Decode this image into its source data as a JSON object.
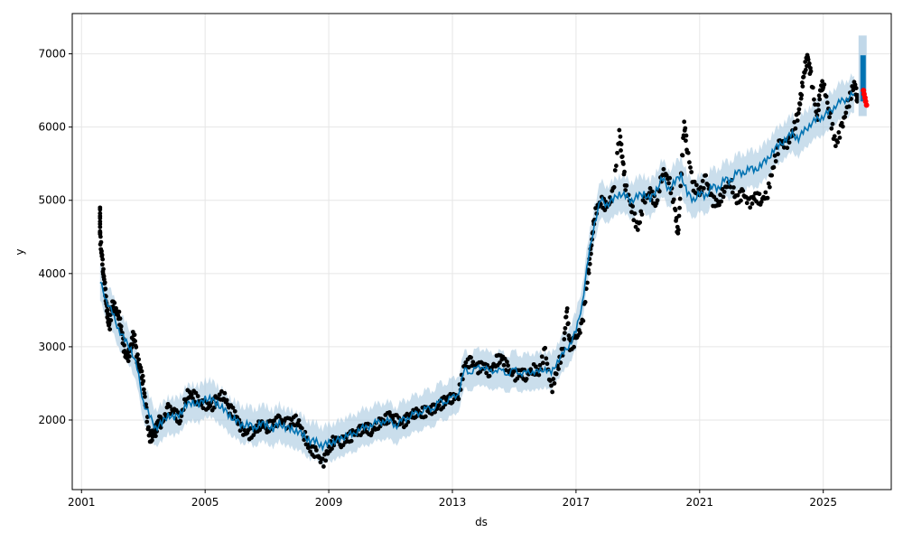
{
  "chart_data": {
    "type": "line",
    "xlabel": "ds",
    "ylabel": "y",
    "xlim": [
      2000.7,
      2027.2
    ],
    "ylim": [
      1050,
      7550
    ],
    "grid": true,
    "x_ticks": [
      2001,
      2005,
      2009,
      2013,
      2017,
      2021,
      2025
    ],
    "y_ticks": [
      2000,
      3000,
      4000,
      5000,
      6000,
      7000
    ],
    "colors": {
      "observed": "#000000",
      "forecast": "#0072B2",
      "uncertainty": "#a6c8e0",
      "test": "#ff0000",
      "grid": "#e6e6e6"
    },
    "series": [
      {
        "role": "forecast",
        "points": [
          [
            2001.6,
            3880
          ],
          [
            2001.8,
            3650
          ],
          [
            2002.0,
            3450
          ],
          [
            2002.2,
            3250
          ],
          [
            2002.4,
            3080
          ],
          [
            2002.6,
            2980
          ],
          [
            2002.8,
            2700
          ],
          [
            2003.0,
            2250
          ],
          [
            2003.2,
            2050
          ],
          [
            2003.4,
            1900
          ],
          [
            2003.6,
            1950
          ],
          [
            2003.8,
            2080
          ],
          [
            2004.0,
            2020
          ],
          [
            2004.2,
            2100
          ],
          [
            2004.4,
            2200
          ],
          [
            2004.6,
            2250
          ],
          [
            2004.8,
            2200
          ],
          [
            2005.0,
            2300
          ],
          [
            2005.2,
            2280
          ],
          [
            2005.4,
            2220
          ],
          [
            2005.6,
            2150
          ],
          [
            2005.8,
            2050
          ],
          [
            2006.0,
            2000
          ],
          [
            2006.2,
            1920
          ],
          [
            2006.4,
            1950
          ],
          [
            2006.6,
            1880
          ],
          [
            2006.8,
            1960
          ],
          [
            2007.0,
            1930
          ],
          [
            2007.2,
            1880
          ],
          [
            2007.4,
            1960
          ],
          [
            2007.6,
            1900
          ],
          [
            2007.8,
            1870
          ],
          [
            2008.0,
            1850
          ],
          [
            2008.2,
            1780
          ],
          [
            2008.4,
            1720
          ],
          [
            2008.6,
            1700
          ],
          [
            2008.8,
            1650
          ],
          [
            2009.0,
            1680
          ],
          [
            2009.2,
            1720
          ],
          [
            2009.4,
            1730
          ],
          [
            2009.6,
            1820
          ],
          [
            2009.8,
            1780
          ],
          [
            2010.0,
            1900
          ],
          [
            2010.2,
            1880
          ],
          [
            2010.4,
            1950
          ],
          [
            2010.6,
            1960
          ],
          [
            2010.8,
            2000
          ],
          [
            2011.0,
            1970
          ],
          [
            2011.2,
            1930
          ],
          [
            2011.4,
            2000
          ],
          [
            2011.6,
            2050
          ],
          [
            2011.8,
            2080
          ],
          [
            2012.0,
            2120
          ],
          [
            2012.2,
            2150
          ],
          [
            2012.4,
            2170
          ],
          [
            2012.6,
            2250
          ],
          [
            2012.8,
            2260
          ],
          [
            2013.0,
            2300
          ],
          [
            2013.2,
            2380
          ],
          [
            2013.4,
            2680
          ],
          [
            2013.6,
            2660
          ],
          [
            2013.8,
            2700
          ],
          [
            2014.0,
            2750
          ],
          [
            2014.2,
            2640
          ],
          [
            2014.4,
            2700
          ],
          [
            2014.6,
            2660
          ],
          [
            2014.8,
            2640
          ],
          [
            2015.0,
            2680
          ],
          [
            2015.2,
            2650
          ],
          [
            2015.4,
            2630
          ],
          [
            2015.6,
            2680
          ],
          [
            2015.8,
            2640
          ],
          [
            2016.0,
            2720
          ],
          [
            2016.2,
            2620
          ],
          [
            2016.4,
            2820
          ],
          [
            2016.6,
            2900
          ],
          [
            2016.8,
            3050
          ],
          [
            2017.0,
            3200
          ],
          [
            2017.2,
            3600
          ],
          [
            2017.4,
            4200
          ],
          [
            2017.6,
            4700
          ],
          [
            2017.8,
            5000
          ],
          [
            2018.0,
            4950
          ],
          [
            2018.2,
            5000
          ],
          [
            2018.4,
            5100
          ],
          [
            2018.6,
            5050
          ],
          [
            2018.8,
            5000
          ],
          [
            2019.0,
            5050
          ],
          [
            2019.2,
            5100
          ],
          [
            2019.4,
            5000
          ],
          [
            2019.6,
            5150
          ],
          [
            2019.8,
            5300
          ],
          [
            2020.0,
            5150
          ],
          [
            2020.2,
            5250
          ],
          [
            2020.4,
            5350
          ],
          [
            2020.6,
            5100
          ],
          [
            2020.8,
            5000
          ],
          [
            2021.0,
            5100
          ],
          [
            2021.2,
            5050
          ],
          [
            2021.4,
            5200
          ],
          [
            2021.6,
            5150
          ],
          [
            2021.8,
            5300
          ],
          [
            2022.0,
            5250
          ],
          [
            2022.2,
            5400
          ],
          [
            2022.4,
            5350
          ],
          [
            2022.6,
            5450
          ],
          [
            2022.8,
            5400
          ],
          [
            2023.0,
            5500
          ],
          [
            2023.2,
            5550
          ],
          [
            2023.4,
            5700
          ],
          [
            2023.6,
            5750
          ],
          [
            2023.8,
            5850
          ],
          [
            2024.0,
            5900
          ],
          [
            2024.2,
            5850
          ],
          [
            2024.4,
            5950
          ],
          [
            2024.6,
            6050
          ],
          [
            2024.8,
            6100
          ],
          [
            2025.0,
            6150
          ],
          [
            2025.2,
            6200
          ],
          [
            2025.4,
            6300
          ],
          [
            2025.6,
            6350
          ],
          [
            2025.8,
            6400
          ],
          [
            2026.0,
            6450
          ]
        ]
      },
      {
        "role": "observed",
        "points": [
          [
            2001.6,
            4900
          ],
          [
            2001.6,
            4650
          ],
          [
            2001.6,
            4500
          ],
          [
            2001.65,
            4300
          ],
          [
            2001.7,
            4050
          ],
          [
            2001.75,
            3850
          ],
          [
            2001.8,
            3600
          ],
          [
            2001.85,
            3400
          ],
          [
            2001.9,
            3250
          ],
          [
            2002.0,
            3600
          ],
          [
            2002.1,
            3500
          ],
          [
            2002.2,
            3450
          ],
          [
            2002.3,
            3200
          ],
          [
            2002.4,
            2900
          ],
          [
            2002.5,
            2850
          ],
          [
            2002.6,
            3000
          ],
          [
            2002.7,
            3200
          ],
          [
            2002.8,
            2850
          ],
          [
            2002.9,
            2700
          ],
          [
            2003.0,
            2500
          ],
          [
            2003.1,
            2100
          ],
          [
            2003.2,
            1750
          ],
          [
            2003.3,
            1800
          ],
          [
            2003.4,
            1850
          ],
          [
            2003.5,
            2000
          ],
          [
            2003.6,
            1950
          ],
          [
            2003.8,
            2150
          ],
          [
            2004.0,
            2100
          ],
          [
            2004.2,
            2000
          ],
          [
            2004.4,
            2350
          ],
          [
            2004.6,
            2350
          ],
          [
            2004.8,
            2250
          ],
          [
            2005.0,
            2200
          ],
          [
            2005.2,
            2180
          ],
          [
            2005.4,
            2300
          ],
          [
            2005.6,
            2350
          ],
          [
            2005.8,
            2150
          ],
          [
            2006.0,
            2050
          ],
          [
            2006.2,
            1850
          ],
          [
            2006.4,
            1800
          ],
          [
            2006.6,
            1850
          ],
          [
            2006.8,
            1950
          ],
          [
            2007.0,
            1900
          ],
          [
            2007.2,
            1950
          ],
          [
            2007.4,
            2000
          ],
          [
            2007.6,
            1950
          ],
          [
            2007.8,
            1980
          ],
          [
            2008.0,
            2000
          ],
          [
            2008.2,
            1800
          ],
          [
            2008.4,
            1600
          ],
          [
            2008.6,
            1550
          ],
          [
            2008.8,
            1400
          ],
          [
            2009.0,
            1600
          ],
          [
            2009.2,
            1750
          ],
          [
            2009.4,
            1700
          ],
          [
            2009.6,
            1750
          ],
          [
            2009.8,
            1800
          ],
          [
            2010.0,
            1850
          ],
          [
            2010.2,
            1900
          ],
          [
            2010.4,
            1850
          ],
          [
            2010.6,
            1950
          ],
          [
            2010.8,
            2000
          ],
          [
            2011.0,
            2050
          ],
          [
            2011.2,
            2000
          ],
          [
            2011.4,
            1950
          ],
          [
            2011.6,
            2050
          ],
          [
            2011.8,
            2100
          ],
          [
            2012.0,
            2100
          ],
          [
            2012.2,
            2120
          ],
          [
            2012.4,
            2150
          ],
          [
            2012.6,
            2200
          ],
          [
            2012.8,
            2280
          ],
          [
            2013.0,
            2300
          ],
          [
            2013.2,
            2350
          ],
          [
            2013.4,
            2750
          ],
          [
            2013.6,
            2800
          ],
          [
            2013.8,
            2700
          ],
          [
            2014.0,
            2750
          ],
          [
            2014.2,
            2650
          ],
          [
            2014.4,
            2800
          ],
          [
            2014.6,
            2850
          ],
          [
            2014.8,
            2700
          ],
          [
            2015.0,
            2600
          ],
          [
            2015.2,
            2650
          ],
          [
            2015.4,
            2600
          ],
          [
            2015.6,
            2700
          ],
          [
            2015.8,
            2650
          ],
          [
            2016.0,
            2950
          ],
          [
            2016.2,
            2400
          ],
          [
            2016.4,
            2700
          ],
          [
            2016.6,
            3000
          ],
          [
            2016.7,
            3550
          ],
          [
            2016.8,
            3000
          ],
          [
            2017.0,
            3100
          ],
          [
            2017.2,
            3300
          ],
          [
            2017.4,
            4000
          ],
          [
            2017.5,
            4400
          ],
          [
            2017.6,
            4800
          ],
          [
            2017.8,
            5000
          ],
          [
            2018.0,
            4900
          ],
          [
            2018.2,
            5100
          ],
          [
            2018.4,
            5900
          ],
          [
            2018.5,
            5600
          ],
          [
            2018.6,
            5200
          ],
          [
            2018.8,
            4900
          ],
          [
            2019.0,
            4600
          ],
          [
            2019.2,
            5000
          ],
          [
            2019.4,
            5100
          ],
          [
            2019.6,
            4950
          ],
          [
            2019.8,
            5400
          ],
          [
            2020.0,
            5300
          ],
          [
            2020.2,
            4900
          ],
          [
            2020.3,
            4500
          ],
          [
            2020.4,
            5300
          ],
          [
            2020.5,
            6050
          ],
          [
            2020.6,
            5700
          ],
          [
            2020.8,
            5200
          ],
          [
            2021.0,
            5100
          ],
          [
            2021.2,
            5300
          ],
          [
            2021.4,
            5000
          ],
          [
            2021.6,
            4950
          ],
          [
            2021.8,
            5150
          ],
          [
            2022.0,
            5250
          ],
          [
            2022.2,
            5000
          ],
          [
            2022.4,
            5100
          ],
          [
            2022.6,
            4950
          ],
          [
            2022.8,
            5050
          ],
          [
            2023.0,
            5000
          ],
          [
            2023.2,
            5100
          ],
          [
            2023.4,
            5500
          ],
          [
            2023.6,
            5800
          ],
          [
            2023.8,
            5750
          ],
          [
            2024.0,
            5900
          ],
          [
            2024.2,
            6200
          ],
          [
            2024.3,
            6500
          ],
          [
            2024.4,
            6800
          ],
          [
            2024.5,
            6950
          ],
          [
            2024.6,
            6700
          ],
          [
            2024.8,
            6100
          ],
          [
            2024.9,
            6500
          ],
          [
            2025.0,
            6600
          ],
          [
            2025.2,
            6200
          ],
          [
            2025.4,
            5750
          ],
          [
            2025.6,
            6000
          ],
          [
            2025.8,
            6300
          ],
          [
            2026.0,
            6600
          ],
          [
            2026.1,
            6400
          ]
        ]
      },
      {
        "role": "test",
        "points": [
          [
            2026.3,
            6500
          ],
          [
            2026.32,
            6450
          ],
          [
            2026.35,
            6400
          ],
          [
            2026.37,
            6350
          ],
          [
            2026.4,
            6300
          ]
        ]
      }
    ]
  }
}
